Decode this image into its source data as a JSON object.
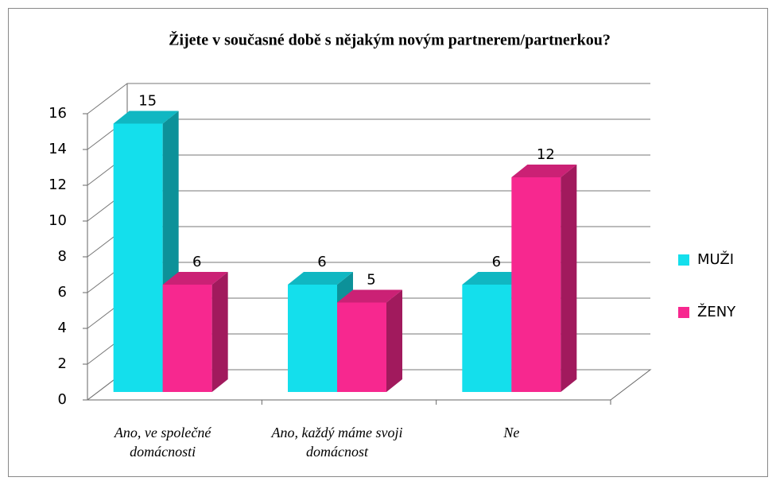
{
  "chart_data": {
    "type": "bar3d",
    "title": "Žijete v současné době s nějakým novým partnerem/partnerkou?",
    "categories": [
      "Ano, ve společné domácnosti",
      "Ano, každý máme svoji domácnost",
      "Ne"
    ],
    "series": [
      {
        "name": "MUŽI",
        "color": "#14dfec",
        "values": [
          15,
          6,
          6
        ]
      },
      {
        "name": "ŽENY",
        "color": "#f7288f",
        "values": [
          6,
          5,
          12
        ]
      }
    ],
    "ylim": [
      0,
      16
    ],
    "yticks": [
      0,
      2,
      4,
      6,
      8,
      10,
      12,
      14,
      16
    ],
    "grid": true,
    "legend": "right"
  }
}
